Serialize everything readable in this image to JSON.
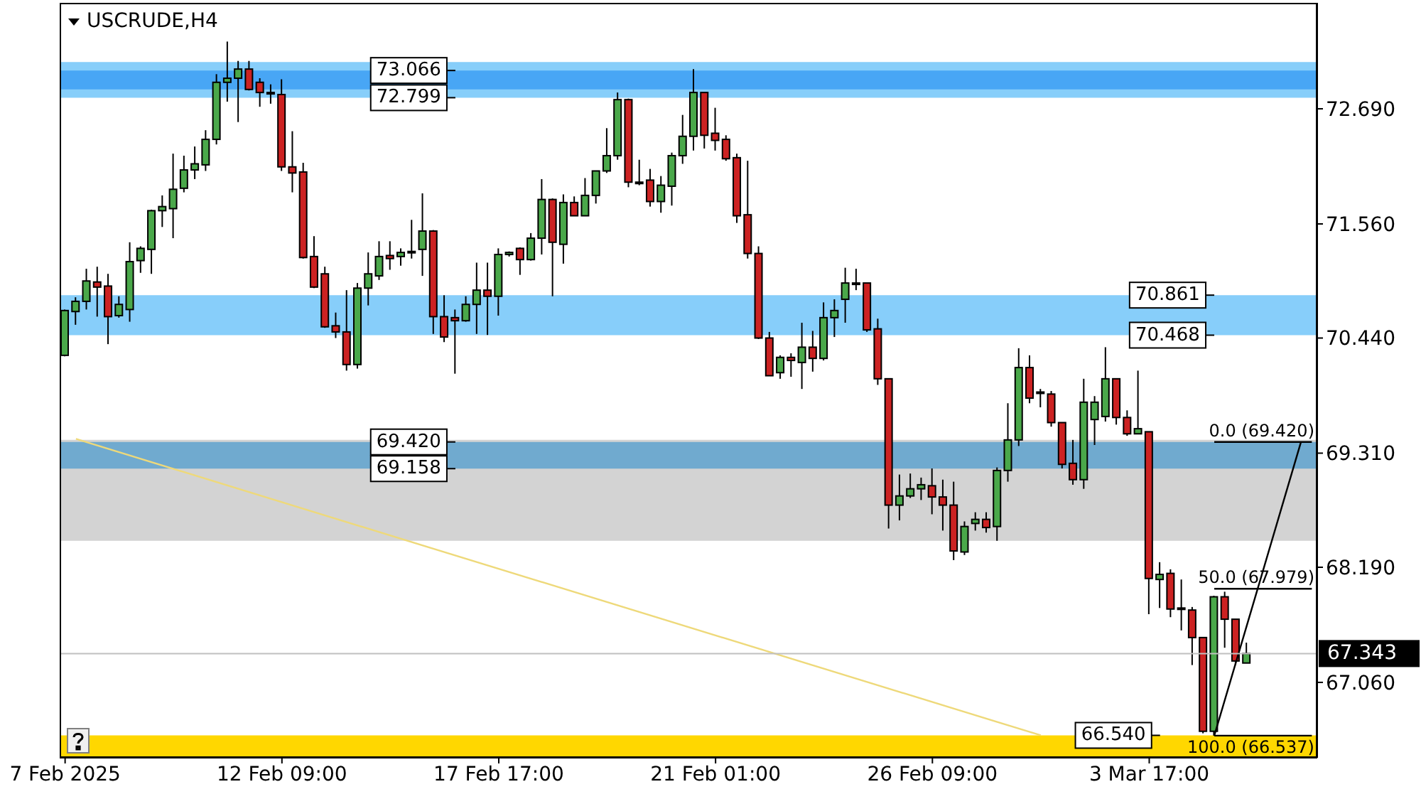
{
  "chart_data": {
    "type": "candlestick",
    "title": "USCRUDE,H4",
    "categories": [
      "7 Feb 2025",
      null,
      null,
      null,
      null,
      null,
      null,
      null,
      null,
      null,
      null,
      null,
      null,
      null,
      null,
      null,
      null,
      null,
      null,
      null,
      "12 Feb 09:00",
      null,
      null,
      null,
      null,
      null,
      null,
      null,
      null,
      null,
      null,
      null,
      null,
      null,
      null,
      null,
      null,
      null,
      null,
      null,
      "17 Feb 17:00",
      null,
      null,
      null,
      null,
      null,
      null,
      null,
      null,
      null,
      null,
      null,
      null,
      null,
      null,
      null,
      null,
      null,
      null,
      null,
      "21 Feb 01:00",
      null,
      null,
      null,
      null,
      null,
      null,
      null,
      null,
      null,
      null,
      null,
      null,
      null,
      null,
      null,
      null,
      null,
      null,
      null,
      "26 Feb 09:00",
      null,
      null,
      null,
      null,
      null,
      null,
      null,
      null,
      null,
      null,
      null,
      null,
      null,
      null,
      null,
      null,
      null,
      null,
      null,
      "3 Mar 17:00",
      null,
      null,
      null,
      null,
      null,
      null,
      null,
      null,
      null,
      null,
      null,
      null,
      null,
      null,
      null
    ],
    "ohlc": [
      [
        70.27,
        70.72,
        70.26,
        70.71
      ],
      [
        70.7,
        70.84,
        70.57,
        70.8
      ],
      [
        70.8,
        71.12,
        70.72,
        71.0
      ],
      [
        70.99,
        71.14,
        70.65,
        70.94
      ],
      [
        70.95,
        71.07,
        70.38,
        70.65
      ],
      [
        70.66,
        70.85,
        70.64,
        70.77
      ],
      [
        70.72,
        71.38,
        70.6,
        71.19
      ],
      [
        71.2,
        71.34,
        71.08,
        71.32
      ],
      [
        71.31,
        71.7,
        71.07,
        71.69
      ],
      [
        71.69,
        71.84,
        71.53,
        71.73
      ],
      [
        71.71,
        72.25,
        71.42,
        71.9
      ],
      [
        71.91,
        72.23,
        71.87,
        72.09
      ],
      [
        72.09,
        72.32,
        72.0,
        72.15
      ],
      [
        72.14,
        72.48,
        72.08,
        72.39
      ],
      [
        72.39,
        73.03,
        72.34,
        72.95
      ],
      [
        72.95,
        73.35,
        72.76,
        72.99
      ],
      [
        72.99,
        73.16,
        72.56,
        73.08
      ],
      [
        73.08,
        73.16,
        72.87,
        72.88
      ],
      [
        72.95,
        72.99,
        72.71,
        72.85
      ],
      [
        72.85,
        72.93,
        72.74,
        72.84
      ],
      [
        72.83,
        72.98,
        72.08,
        72.12
      ],
      [
        72.12,
        72.47,
        71.87,
        72.06
      ],
      [
        72.07,
        72.16,
        71.22,
        71.23
      ],
      [
        71.24,
        71.44,
        70.93,
        70.94
      ],
      [
        71.07,
        71.14,
        70.54,
        70.55
      ],
      [
        70.56,
        70.69,
        70.44,
        70.5
      ],
      [
        70.5,
        70.91,
        70.12,
        70.18
      ],
      [
        70.18,
        70.98,
        70.14,
        70.93
      ],
      [
        70.93,
        71.28,
        70.76,
        71.07
      ],
      [
        71.05,
        71.39,
        71.01,
        71.24
      ],
      [
        71.25,
        71.39,
        71.11,
        71.22
      ],
      [
        71.24,
        71.32,
        71.15,
        71.28
      ],
      [
        71.28,
        71.6,
        71.22,
        71.29
      ],
      [
        71.31,
        71.86,
        71.05,
        71.49
      ],
      [
        71.49,
        71.5,
        70.48,
        70.65
      ],
      [
        70.65,
        70.86,
        70.4,
        70.45
      ],
      [
        70.64,
        70.72,
        70.09,
        70.61
      ],
      [
        70.61,
        70.85,
        70.6,
        70.77
      ],
      [
        70.77,
        71.18,
        70.48,
        70.91
      ],
      [
        70.91,
        71.18,
        70.47,
        70.85
      ],
      [
        70.85,
        71.32,
        70.66,
        71.26
      ],
      [
        71.26,
        71.29,
        71.24,
        71.28
      ],
      [
        71.32,
        71.33,
        71.06,
        71.21
      ],
      [
        71.21,
        71.47,
        71.2,
        71.42
      ],
      [
        71.42,
        72.0,
        71.26,
        71.8
      ],
      [
        71.8,
        71.81,
        70.85,
        71.38
      ],
      [
        71.36,
        71.85,
        71.17,
        71.77
      ],
      [
        71.77,
        71.83,
        71.64,
        71.64
      ],
      [
        71.64,
        72.01,
        71.64,
        71.84
      ],
      [
        71.84,
        72.08,
        71.76,
        72.08
      ],
      [
        72.08,
        72.5,
        72.06,
        72.23
      ],
      [
        72.23,
        72.85,
        72.19,
        72.78
      ],
      [
        72.78,
        72.79,
        71.92,
        71.97
      ],
      [
        71.97,
        72.19,
        71.94,
        71.96
      ],
      [
        71.99,
        72.1,
        71.73,
        71.78
      ],
      [
        71.78,
        72.03,
        71.67,
        71.94
      ],
      [
        71.93,
        72.26,
        71.74,
        72.23
      ],
      [
        72.23,
        72.63,
        72.15,
        72.42
      ],
      [
        72.42,
        73.08,
        72.28,
        72.85
      ],
      [
        72.85,
        72.85,
        72.3,
        72.43
      ],
      [
        72.45,
        72.7,
        72.28,
        72.38
      ],
      [
        72.39,
        72.43,
        72.18,
        72.2
      ],
      [
        72.21,
        72.25,
        71.57,
        71.64
      ],
      [
        71.65,
        72.18,
        71.22,
        71.27
      ],
      [
        71.27,
        71.34,
        70.43,
        70.44
      ],
      [
        70.44,
        70.5,
        70.07,
        70.07
      ],
      [
        70.1,
        70.27,
        70.04,
        70.25
      ],
      [
        70.25,
        70.29,
        70.06,
        70.22
      ],
      [
        70.2,
        70.59,
        69.94,
        70.35
      ],
      [
        70.35,
        70.51,
        70.11,
        70.24
      ],
      [
        70.24,
        70.79,
        70.22,
        70.64
      ],
      [
        70.64,
        70.82,
        70.45,
        70.71
      ],
      [
        70.82,
        71.13,
        70.59,
        70.98
      ],
      [
        70.98,
        71.12,
        70.91,
        70.97
      ],
      [
        70.98,
        70.98,
        70.5,
        70.52
      ],
      [
        70.53,
        70.63,
        69.98,
        70.04
      ],
      [
        70.04,
        70.04,
        68.57,
        68.8
      ],
      [
        68.8,
        69.1,
        68.65,
        68.89
      ],
      [
        68.89,
        69.11,
        68.87,
        68.96
      ],
      [
        68.96,
        69.07,
        68.85,
        69.0
      ],
      [
        68.99,
        69.16,
        68.71,
        68.88
      ],
      [
        68.88,
        69.05,
        68.55,
        68.8
      ],
      [
        68.8,
        69.03,
        68.26,
        68.35
      ],
      [
        68.34,
        68.64,
        68.31,
        68.59
      ],
      [
        68.62,
        68.73,
        68.55,
        68.66
      ],
      [
        68.66,
        68.73,
        68.53,
        68.58
      ],
      [
        68.59,
        69.17,
        68.45,
        69.14
      ],
      [
        69.14,
        69.8,
        69.03,
        69.44
      ],
      [
        69.44,
        70.34,
        69.38,
        70.15
      ],
      [
        70.15,
        70.27,
        69.8,
        69.85
      ],
      [
        69.91,
        69.94,
        69.76,
        69.9
      ],
      [
        69.89,
        69.92,
        69.57,
        69.61
      ],
      [
        69.61,
        69.61,
        69.16,
        69.2
      ],
      [
        69.21,
        69.44,
        69.0,
        69.05
      ],
      [
        69.05,
        70.04,
        68.96,
        69.81
      ],
      [
        69.64,
        69.87,
        69.39,
        69.81
      ],
      [
        69.67,
        70.35,
        69.62,
        70.04
      ],
      [
        70.04,
        70.04,
        69.59,
        69.66
      ],
      [
        69.66,
        69.73,
        69.48,
        69.5
      ],
      [
        69.5,
        70.12,
        69.5,
        69.55
      ],
      [
        69.52,
        69.52,
        67.73,
        68.08
      ],
      [
        68.07,
        68.24,
        67.79,
        68.12
      ],
      [
        68.13,
        68.17,
        67.7,
        67.78
      ],
      [
        67.79,
        68.07,
        67.57,
        67.78
      ],
      [
        67.77,
        67.8,
        67.23,
        67.5
      ],
      [
        67.5,
        67.5,
        66.56,
        66.58
      ],
      [
        66.58,
        67.91,
        66.537,
        67.9
      ],
      [
        67.9,
        67.95,
        67.4,
        67.68
      ],
      [
        67.68,
        67.68,
        67.23,
        67.27
      ],
      [
        67.25,
        67.45,
        67.25,
        67.343
      ],
      null,
      null,
      null,
      null,
      null,
      null
    ],
    "colors": [
      "#4aa84a",
      "#4aa84a",
      "#4aa84a",
      "#cc2222",
      "#cc2222",
      "#4aa84a",
      "#4aa84a",
      "#4aa84a",
      "#4aa84a",
      "#4aa84a",
      "#4aa84a",
      "#4aa84a",
      "#4aa84a",
      "#4aa84a",
      "#4aa84a",
      "#4aa84a",
      "#4aa84a",
      "#cc2222",
      "#cc2222",
      "#cc2222",
      "#cc2222",
      "#cc2222",
      "#cc2222",
      "#cc2222",
      "#cc2222",
      "#cc2222",
      "#cc2222",
      "#4aa84a",
      "#4aa84a",
      "#4aa84a",
      "#cc2222",
      "#4aa84a",
      "#4aa84a",
      "#4aa84a",
      "#cc2222",
      "#cc2222",
      "#cc2222",
      "#4aa84a",
      "#4aa84a",
      "#cc2222",
      "#4aa84a",
      "#4aa84a",
      "#cc2222",
      "#4aa84a",
      "#4aa84a",
      "#cc2222",
      "#4aa84a",
      "#cc2222",
      "#4aa84a",
      "#4aa84a",
      "#4aa84a",
      "#4aa84a",
      "#cc2222",
      "#cc2222",
      "#cc2222",
      "#4aa84a",
      "#4aa84a",
      "#4aa84a",
      "#4aa84a",
      "#cc2222",
      "#cc2222",
      "#cc2222",
      "#cc2222",
      "#cc2222",
      "#cc2222",
      "#cc2222",
      "#4aa84a",
      "#cc2222",
      "#4aa84a",
      "#cc2222",
      "#4aa84a",
      "#4aa84a",
      "#4aa84a",
      "#cc2222",
      "#cc2222",
      "#cc2222",
      "#cc2222",
      "#4aa84a",
      "#4aa84a",
      "#4aa84a",
      "#cc2222",
      "#cc2222",
      "#cc2222",
      "#4aa84a",
      "#4aa84a",
      "#cc2222",
      "#4aa84a",
      "#4aa84a",
      "#4aa84a",
      "#cc2222",
      "#cc2222",
      "#cc2222",
      "#cc2222",
      "#cc2222",
      "#4aa84a",
      "#4aa84a",
      "#4aa84a",
      "#cc2222",
      "#cc2222",
      "#4aa84a",
      "#cc2222",
      "#4aa84a",
      "#cc2222",
      "#cc2222",
      "#cc2222",
      "#cc2222",
      "#4aa84a",
      "#cc2222",
      "#cc2222",
      "#4aa84a",
      null,
      null,
      null,
      null,
      null,
      null
    ],
    "ylim": [
      66.32,
      73.73
    ],
    "yticks": [
      {
        "value": 67.06,
        "label": "67.060"
      },
      {
        "value": 68.19,
        "label": "68.190"
      },
      {
        "value": 69.31,
        "label": "69.310"
      },
      {
        "value": 70.44,
        "label": "70.440"
      },
      {
        "value": 71.56,
        "label": "71.560"
      },
      {
        "value": 72.69,
        "label": "72.690"
      }
    ],
    "bands": [
      {
        "axis": "y",
        "from": 72.88,
        "to": 73.15,
        "color": "#87cefa"
      },
      {
        "axis": "y",
        "from": 72.799,
        "to": 73.066,
        "color": "#87cefa"
      },
      {
        "axis": "y",
        "from": 68.45,
        "to": 69.44,
        "color": "#d3d3d3"
      },
      {
        "axis": "y",
        "from": 70.468,
        "to": 70.861,
        "color": "#87cefa"
      },
      {
        "axis": "y",
        "from": 69.158,
        "to": 69.42,
        "color": "#87cefa"
      },
      {
        "axis": "y",
        "from": 66.32,
        "to": 66.54,
        "color": "#ffd700"
      }
    ],
    "series": [
      {
        "type": "line",
        "color": "#eed97a",
        "values": [
          null,
          69.45,
          null,
          null,
          null,
          null,
          null,
          null,
          null,
          null,
          null,
          null,
          null,
          null,
          null,
          null,
          null,
          null,
          null,
          null,
          null,
          null,
          null,
          null,
          null,
          null,
          null,
          null,
          null,
          null,
          null,
          null,
          null,
          null,
          null,
          null,
          null,
          null,
          null,
          null,
          null,
          null,
          null,
          null,
          null,
          null,
          null,
          null,
          null,
          null,
          null,
          null,
          null,
          null,
          null,
          null,
          null,
          null,
          null,
          null,
          null,
          null,
          null,
          null,
          null,
          null,
          null,
          null,
          null,
          null,
          null,
          null,
          null,
          null,
          null,
          null,
          null,
          null,
          null,
          null,
          null,
          null,
          null,
          null,
          null,
          null,
          null,
          null,
          null,
          null,
          66.54,
          null,
          null,
          null,
          null,
          null,
          null,
          null,
          null,
          null,
          null,
          null,
          null,
          null,
          null,
          null,
          null,
          null,
          null,
          null,
          null,
          null,
          null,
          null,
          null,
          null
        ]
      },
      {
        "type": "line",
        "color": "#000000",
        "values": [
          null,
          null,
          null,
          null,
          null,
          null,
          null,
          null,
          null,
          null,
          null,
          null,
          null,
          null,
          null,
          null,
          null,
          null,
          null,
          null,
          null,
          null,
          null,
          null,
          null,
          null,
          null,
          null,
          null,
          null,
          null,
          null,
          null,
          null,
          null,
          null,
          null,
          null,
          null,
          null,
          null,
          null,
          null,
          null,
          null,
          null,
          null,
          null,
          null,
          null,
          null,
          null,
          null,
          null,
          null,
          null,
          null,
          null,
          null,
          null,
          null,
          null,
          null,
          null,
          null,
          null,
          null,
          null,
          null,
          null,
          null,
          null,
          null,
          null,
          null,
          null,
          null,
          null,
          null,
          null,
          null,
          null,
          null,
          null,
          null,
          null,
          null,
          null,
          null,
          null,
          null,
          null,
          null,
          null,
          null,
          null,
          null,
          null,
          null,
          null,
          null,
          null,
          null,
          null,
          null,
          null,
          66.537,
          null,
          null,
          null,
          null,
          null,
          null,
          null,
          69.42,
          null
        ]
      },
      {
        "type": "line",
        "name": "0.0 (69.420)",
        "color": "#000000",
        "values": [
          null,
          null,
          null,
          null,
          null,
          null,
          null,
          null,
          null,
          null,
          null,
          null,
          null,
          null,
          null,
          null,
          null,
          null,
          null,
          null,
          null,
          null,
          null,
          null,
          null,
          null,
          null,
          null,
          null,
          null,
          null,
          null,
          null,
          null,
          null,
          null,
          null,
          null,
          null,
          null,
          null,
          null,
          null,
          null,
          null,
          null,
          null,
          null,
          null,
          null,
          null,
          null,
          null,
          null,
          null,
          null,
          null,
          null,
          null,
          null,
          null,
          null,
          null,
          null,
          null,
          null,
          null,
          null,
          null,
          null,
          null,
          null,
          null,
          null,
          null,
          null,
          null,
          null,
          null,
          null,
          null,
          null,
          null,
          null,
          null,
          null,
          null,
          null,
          null,
          null,
          null,
          null,
          null,
          null,
          null,
          null,
          null,
          null,
          null,
          null,
          null,
          null,
          null,
          null,
          null,
          null,
          69.42,
          null,
          null,
          null,
          null,
          null,
          null,
          null,
          null,
          69.42
        ]
      },
      {
        "type": "line",
        "name": "50.0 (67.979)",
        "color": "#000000",
        "values": [
          null,
          null,
          null,
          null,
          null,
          null,
          null,
          null,
          null,
          null,
          null,
          null,
          null,
          null,
          null,
          null,
          null,
          null,
          null,
          null,
          null,
          null,
          null,
          null,
          null,
          null,
          null,
          null,
          null,
          null,
          null,
          null,
          null,
          null,
          null,
          null,
          null,
          null,
          null,
          null,
          null,
          null,
          null,
          null,
          null,
          null,
          null,
          null,
          null,
          null,
          null,
          null,
          null,
          null,
          null,
          null,
          null,
          null,
          null,
          null,
          null,
          null,
          null,
          null,
          null,
          null,
          null,
          null,
          null,
          null,
          null,
          null,
          null,
          null,
          null,
          null,
          null,
          null,
          null,
          null,
          null,
          null,
          null,
          null,
          null,
          null,
          null,
          null,
          null,
          null,
          null,
          null,
          null,
          null,
          null,
          null,
          null,
          null,
          null,
          null,
          null,
          null,
          null,
          null,
          null,
          null,
          67.979,
          null,
          null,
          null,
          null,
          null,
          null,
          null,
          null,
          67.979
        ]
      },
      {
        "type": "line",
        "name": "100.0 (66.537)",
        "color": "#000000",
        "values": [
          null,
          null,
          null,
          null,
          null,
          null,
          null,
          null,
          null,
          null,
          null,
          null,
          null,
          null,
          null,
          null,
          null,
          null,
          null,
          null,
          null,
          null,
          null,
          null,
          null,
          null,
          null,
          null,
          null,
          null,
          null,
          null,
          null,
          null,
          null,
          null,
          null,
          null,
          null,
          null,
          null,
          null,
          null,
          null,
          null,
          null,
          null,
          null,
          null,
          null,
          null,
          null,
          null,
          null,
          null,
          null,
          null,
          null,
          null,
          null,
          null,
          null,
          null,
          null,
          null,
          null,
          null,
          null,
          null,
          null,
          null,
          null,
          null,
          null,
          null,
          null,
          null,
          null,
          null,
          null,
          null,
          null,
          null,
          null,
          null,
          null,
          null,
          null,
          null,
          null,
          null,
          null,
          null,
          null,
          null,
          null,
          null,
          null,
          null,
          null,
          null,
          null,
          null,
          null,
          null,
          null,
          66.537,
          null,
          null,
          null,
          null,
          null,
          null,
          null,
          null,
          66.537
        ]
      }
    ],
    "ref_lines": [
      {
        "axis": "y",
        "value": 67.343,
        "label": "67.343",
        "color": "#c0c0c0"
      }
    ],
    "annotations": [
      "73.066",
      "72.799",
      "70.861",
      "70.468",
      "69.420",
      "69.158",
      "66.540"
    ]
  }
}
